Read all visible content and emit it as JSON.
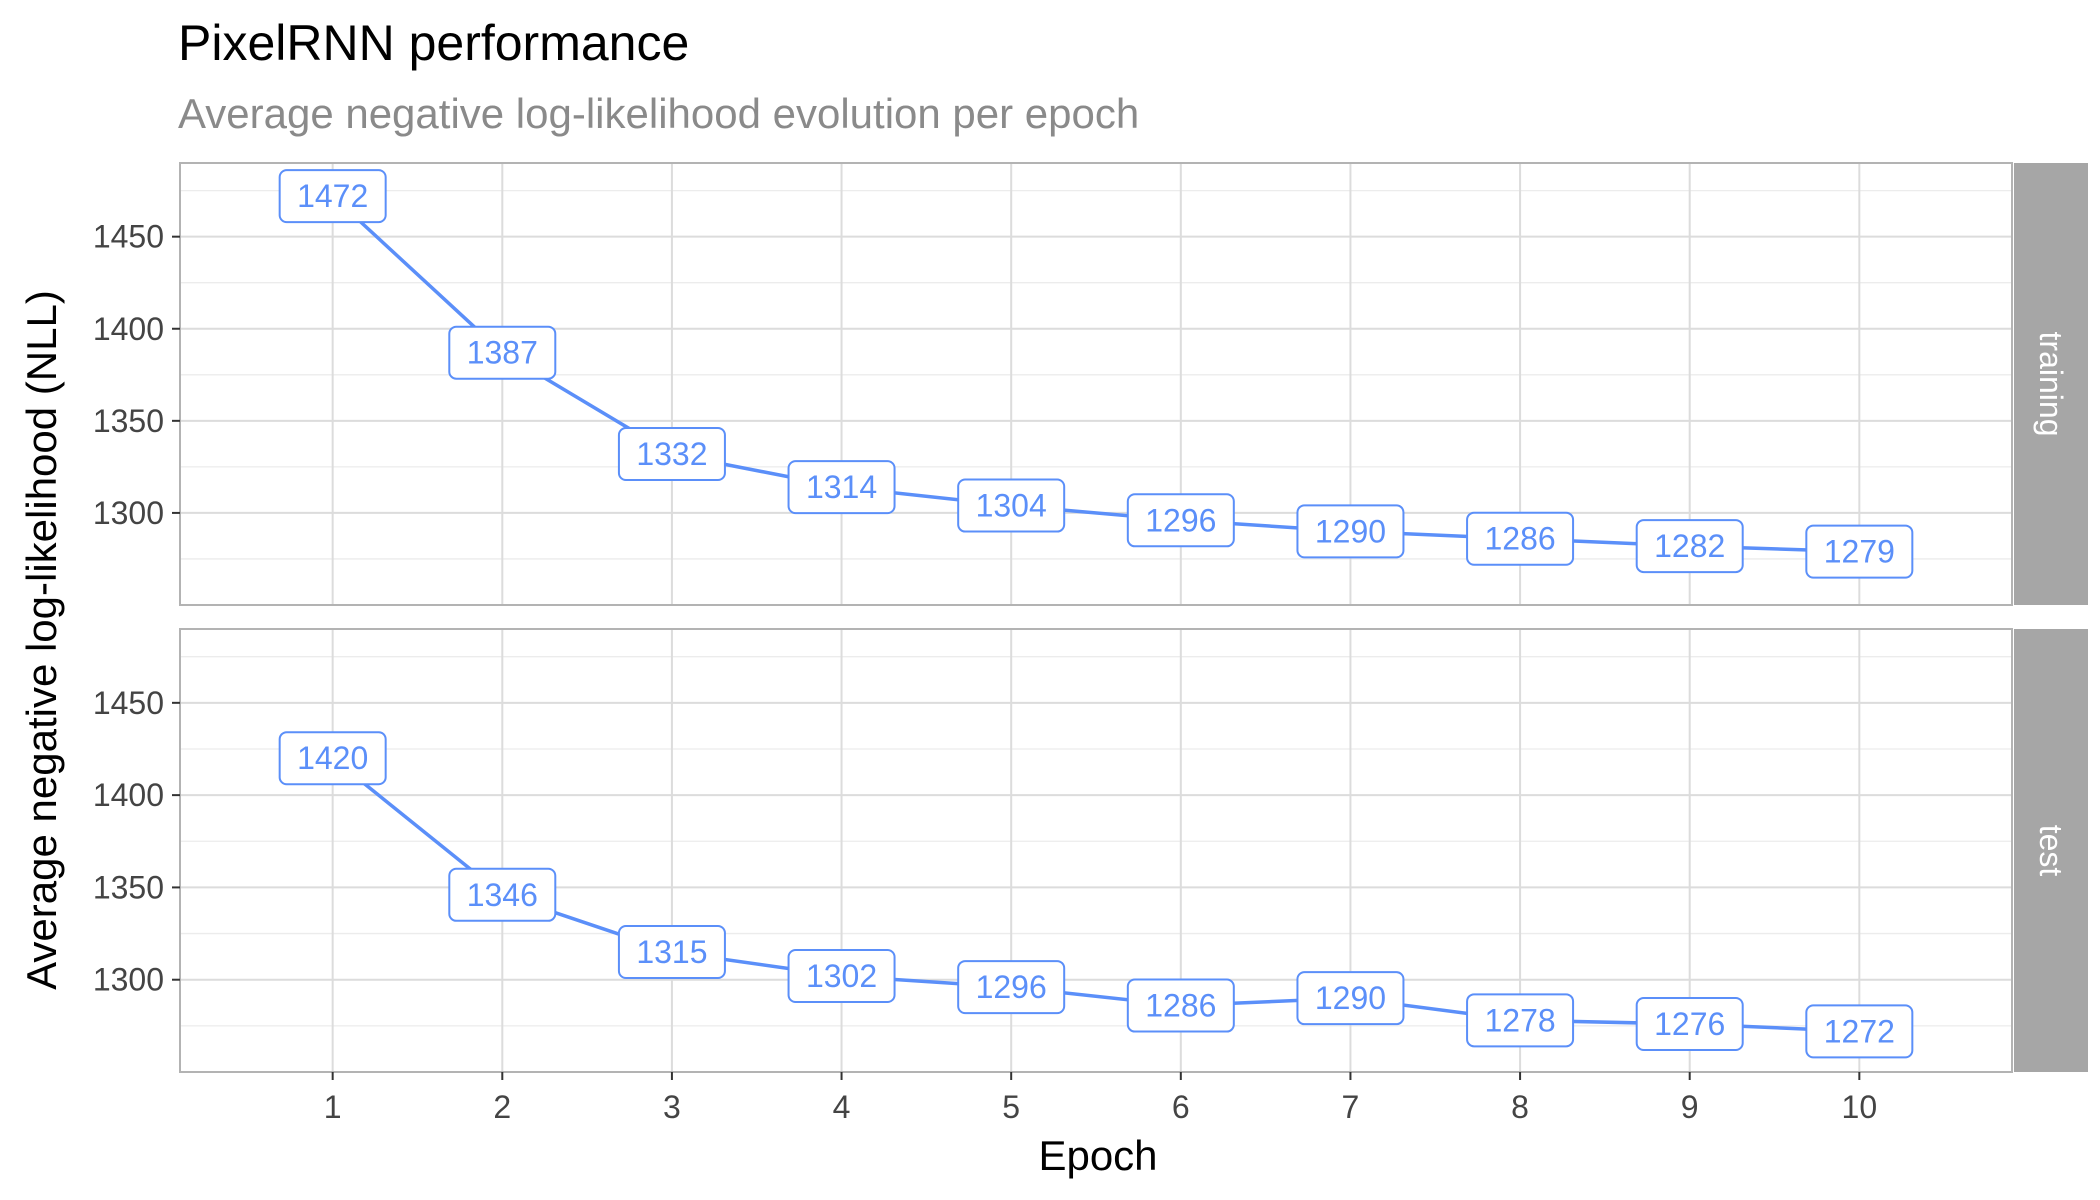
{
  "chart_data": {
    "type": "line",
    "title": "PixelRNN performance",
    "subtitle": "Average negative log-likelihood evolution per epoch",
    "xlabel": "Epoch",
    "ylabel": "Average negative log-likelihood (NLL)",
    "x": [
      1,
      2,
      3,
      4,
      5,
      6,
      7,
      8,
      9,
      10
    ],
    "x_ticks": [
      "1",
      "2",
      "3",
      "4",
      "5",
      "6",
      "7",
      "8",
      "9",
      "10"
    ],
    "y_ticks": [
      1300,
      1350,
      1400,
      1450
    ],
    "ylim": [
      1250,
      1490
    ],
    "xlim": [
      0.1,
      10.9
    ],
    "grid": true,
    "line_color": "#5B8FF9",
    "strip_color": "#A6A6A6",
    "facets": [
      {
        "name": "training",
        "values": [
          1472,
          1387,
          1332,
          1314,
          1304,
          1296,
          1290,
          1286,
          1282,
          1279
        ]
      },
      {
        "name": "test",
        "values": [
          1420,
          1346,
          1315,
          1302,
          1296,
          1286,
          1290,
          1278,
          1276,
          1272
        ]
      }
    ]
  }
}
